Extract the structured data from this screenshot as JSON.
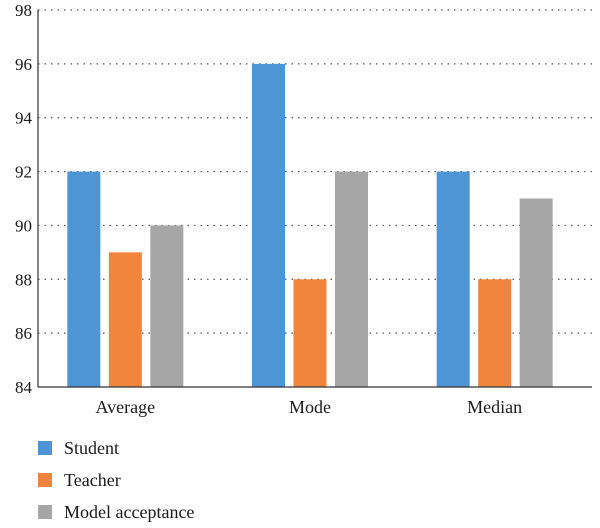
{
  "chart_data": {
    "type": "bar",
    "categories": [
      "Average",
      "Mode",
      "Median"
    ],
    "series": [
      {
        "name": "Student",
        "values": [
          92,
          96,
          92
        ],
        "color": "#4e95d6"
      },
      {
        "name": "Teacher",
        "values": [
          89,
          88,
          88
        ],
        "color": "#f0843c"
      },
      {
        "name": "Model acceptance",
        "values": [
          90,
          92,
          91
        ],
        "color": "#a6a6a6"
      }
    ],
    "ylim": [
      84,
      98
    ],
    "yticks": [
      "84",
      "86",
      "88",
      "90",
      "92",
      "94",
      "96",
      "98"
    ],
    "grid": "dotted horizontal",
    "legend_position": "bottom-left",
    "title": "",
    "xlabel": "",
    "ylabel": ""
  }
}
